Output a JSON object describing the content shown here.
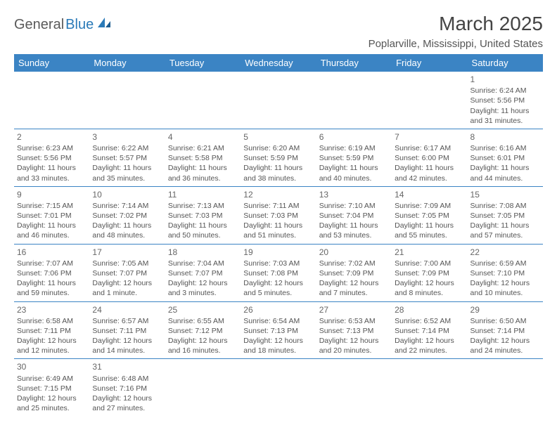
{
  "logo": {
    "part1": "General",
    "part2": "Blue"
  },
  "title": "March 2025",
  "subtitle": "Poplarville, Mississippi, United States",
  "colors": {
    "header_bg": "#3b84c4",
    "header_text": "#ffffff",
    "border": "#3b84c4",
    "logo_gray": "#5a5a5a",
    "logo_blue": "#2a7ab8",
    "cell_text": "#555555"
  },
  "days": [
    "Sunday",
    "Monday",
    "Tuesday",
    "Wednesday",
    "Thursday",
    "Friday",
    "Saturday"
  ],
  "weeks": [
    [
      null,
      null,
      null,
      null,
      null,
      null,
      {
        "n": "1",
        "sunrise": "6:24 AM",
        "sunset": "5:56 PM",
        "daylight": "11 hours and 31 minutes."
      }
    ],
    [
      {
        "n": "2",
        "sunrise": "6:23 AM",
        "sunset": "5:56 PM",
        "daylight": "11 hours and 33 minutes."
      },
      {
        "n": "3",
        "sunrise": "6:22 AM",
        "sunset": "5:57 PM",
        "daylight": "11 hours and 35 minutes."
      },
      {
        "n": "4",
        "sunrise": "6:21 AM",
        "sunset": "5:58 PM",
        "daylight": "11 hours and 36 minutes."
      },
      {
        "n": "5",
        "sunrise": "6:20 AM",
        "sunset": "5:59 PM",
        "daylight": "11 hours and 38 minutes."
      },
      {
        "n": "6",
        "sunrise": "6:19 AM",
        "sunset": "5:59 PM",
        "daylight": "11 hours and 40 minutes."
      },
      {
        "n": "7",
        "sunrise": "6:17 AM",
        "sunset": "6:00 PM",
        "daylight": "11 hours and 42 minutes."
      },
      {
        "n": "8",
        "sunrise": "6:16 AM",
        "sunset": "6:01 PM",
        "daylight": "11 hours and 44 minutes."
      }
    ],
    [
      {
        "n": "9",
        "sunrise": "7:15 AM",
        "sunset": "7:01 PM",
        "daylight": "11 hours and 46 minutes."
      },
      {
        "n": "10",
        "sunrise": "7:14 AM",
        "sunset": "7:02 PM",
        "daylight": "11 hours and 48 minutes."
      },
      {
        "n": "11",
        "sunrise": "7:13 AM",
        "sunset": "7:03 PM",
        "daylight": "11 hours and 50 minutes."
      },
      {
        "n": "12",
        "sunrise": "7:11 AM",
        "sunset": "7:03 PM",
        "daylight": "11 hours and 51 minutes."
      },
      {
        "n": "13",
        "sunrise": "7:10 AM",
        "sunset": "7:04 PM",
        "daylight": "11 hours and 53 minutes."
      },
      {
        "n": "14",
        "sunrise": "7:09 AM",
        "sunset": "7:05 PM",
        "daylight": "11 hours and 55 minutes."
      },
      {
        "n": "15",
        "sunrise": "7:08 AM",
        "sunset": "7:05 PM",
        "daylight": "11 hours and 57 minutes."
      }
    ],
    [
      {
        "n": "16",
        "sunrise": "7:07 AM",
        "sunset": "7:06 PM",
        "daylight": "11 hours and 59 minutes."
      },
      {
        "n": "17",
        "sunrise": "7:05 AM",
        "sunset": "7:07 PM",
        "daylight": "12 hours and 1 minute."
      },
      {
        "n": "18",
        "sunrise": "7:04 AM",
        "sunset": "7:07 PM",
        "daylight": "12 hours and 3 minutes."
      },
      {
        "n": "19",
        "sunrise": "7:03 AM",
        "sunset": "7:08 PM",
        "daylight": "12 hours and 5 minutes."
      },
      {
        "n": "20",
        "sunrise": "7:02 AM",
        "sunset": "7:09 PM",
        "daylight": "12 hours and 7 minutes."
      },
      {
        "n": "21",
        "sunrise": "7:00 AM",
        "sunset": "7:09 PM",
        "daylight": "12 hours and 8 minutes."
      },
      {
        "n": "22",
        "sunrise": "6:59 AM",
        "sunset": "7:10 PM",
        "daylight": "12 hours and 10 minutes."
      }
    ],
    [
      {
        "n": "23",
        "sunrise": "6:58 AM",
        "sunset": "7:11 PM",
        "daylight": "12 hours and 12 minutes."
      },
      {
        "n": "24",
        "sunrise": "6:57 AM",
        "sunset": "7:11 PM",
        "daylight": "12 hours and 14 minutes."
      },
      {
        "n": "25",
        "sunrise": "6:55 AM",
        "sunset": "7:12 PM",
        "daylight": "12 hours and 16 minutes."
      },
      {
        "n": "26",
        "sunrise": "6:54 AM",
        "sunset": "7:13 PM",
        "daylight": "12 hours and 18 minutes."
      },
      {
        "n": "27",
        "sunrise": "6:53 AM",
        "sunset": "7:13 PM",
        "daylight": "12 hours and 20 minutes."
      },
      {
        "n": "28",
        "sunrise": "6:52 AM",
        "sunset": "7:14 PM",
        "daylight": "12 hours and 22 minutes."
      },
      {
        "n": "29",
        "sunrise": "6:50 AM",
        "sunset": "7:14 PM",
        "daylight": "12 hours and 24 minutes."
      }
    ],
    [
      {
        "n": "30",
        "sunrise": "6:49 AM",
        "sunset": "7:15 PM",
        "daylight": "12 hours and 25 minutes."
      },
      {
        "n": "31",
        "sunrise": "6:48 AM",
        "sunset": "7:16 PM",
        "daylight": "12 hours and 27 minutes."
      },
      null,
      null,
      null,
      null,
      null
    ]
  ],
  "labels": {
    "sunrise": "Sunrise: ",
    "sunset": "Sunset: ",
    "daylight": "Daylight: "
  }
}
